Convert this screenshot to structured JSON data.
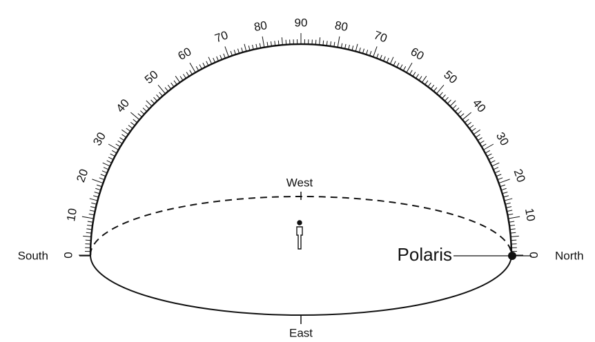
{
  "labels": {
    "south": "South",
    "north": "North",
    "west": "West",
    "east": "East",
    "star": "Polaris"
  },
  "scale": {
    "south_side": [
      0,
      10,
      20,
      30,
      40,
      50,
      60,
      70,
      80,
      90
    ],
    "north_side": [
      80,
      70,
      60,
      50,
      40,
      30,
      20,
      10,
      0
    ]
  }
}
